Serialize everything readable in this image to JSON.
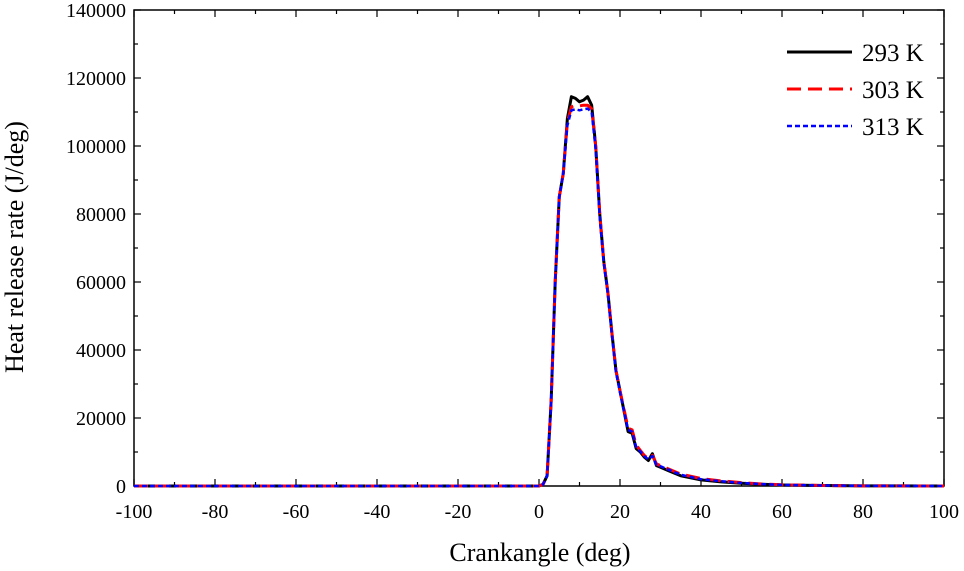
{
  "chart_data": {
    "type": "line",
    "xlabel": "Crankangle (deg)",
    "ylabel": "Heat release rate (J/deg)",
    "xlim": [
      -100,
      100
    ],
    "ylim": [
      0,
      140000
    ],
    "x_ticks": [
      -100,
      -80,
      -60,
      -40,
      -20,
      0,
      20,
      40,
      60,
      80,
      100
    ],
    "y_ticks": [
      0,
      20000,
      40000,
      60000,
      80000,
      100000,
      120000,
      140000
    ],
    "grid": false,
    "legend_position": "top-right",
    "series": [
      {
        "name": "293 K",
        "color": "#000000",
        "dash": "solid",
        "x": [
          -100,
          0,
          1,
          2,
          3,
          4,
          5,
          6,
          7,
          8,
          9,
          10,
          11,
          12,
          13,
          14,
          15,
          16,
          17,
          18,
          19,
          20,
          21,
          22,
          23,
          24,
          25,
          26,
          27,
          28,
          29,
          30,
          32,
          35,
          40,
          45,
          50,
          55,
          60,
          70,
          80,
          100
        ],
        "y": [
          0,
          0,
          500,
          3000,
          25000,
          60000,
          85000,
          92000,
          108000,
          114500,
          114000,
          113000,
          113500,
          114500,
          112000,
          100000,
          80000,
          66000,
          57000,
          45000,
          34000,
          28000,
          22000,
          16000,
          15500,
          11000,
          10000,
          8500,
          7500,
          9500,
          6000,
          5500,
          4500,
          3000,
          1800,
          1200,
          800,
          500,
          300,
          150,
          50,
          0
        ]
      },
      {
        "name": "303 K",
        "color": "#ff0000",
        "dash": "dashed",
        "x": [
          -100,
          0,
          1,
          2,
          3,
          4,
          5,
          6,
          7,
          8,
          9,
          10,
          11,
          12,
          13,
          14,
          15,
          16,
          17,
          18,
          19,
          20,
          21,
          22,
          23,
          24,
          25,
          26,
          27,
          28,
          29,
          30,
          32,
          35,
          40,
          45,
          50,
          55,
          60,
          70,
          80,
          100
        ],
        "y": [
          0,
          0,
          500,
          3000,
          25000,
          60000,
          85000,
          92000,
          107000,
          111500,
          112000,
          111800,
          112000,
          112000,
          111000,
          100000,
          80000,
          66000,
          57000,
          45000,
          34000,
          28000,
          22500,
          17000,
          16500,
          12000,
          10500,
          9000,
          8000,
          9000,
          6500,
          6000,
          5000,
          3500,
          2200,
          1500,
          1000,
          600,
          350,
          150,
          50,
          0
        ]
      },
      {
        "name": "313 K",
        "color": "#0000ff",
        "dash": "dotted",
        "x": [
          -100,
          0,
          1,
          2,
          3,
          4,
          5,
          6,
          7,
          8,
          9,
          10,
          11,
          12,
          13,
          14,
          15,
          16,
          17,
          18,
          19,
          20,
          21,
          22,
          23,
          24,
          25,
          26,
          27,
          28,
          29,
          30,
          32,
          35,
          40,
          45,
          50,
          55,
          60,
          70,
          80,
          100
        ],
        "y": [
          0,
          0,
          500,
          3000,
          25000,
          60000,
          85000,
          92000,
          106000,
          110500,
          110800,
          110500,
          110800,
          111000,
          110000,
          99000,
          79000,
          65500,
          56500,
          44500,
          33500,
          27500,
          22000,
          16500,
          16000,
          11500,
          10200,
          8800,
          7800,
          8800,
          6200,
          5800,
          4800,
          3300,
          2000,
          1400,
          900,
          550,
          320,
          150,
          50,
          0
        ]
      }
    ]
  }
}
